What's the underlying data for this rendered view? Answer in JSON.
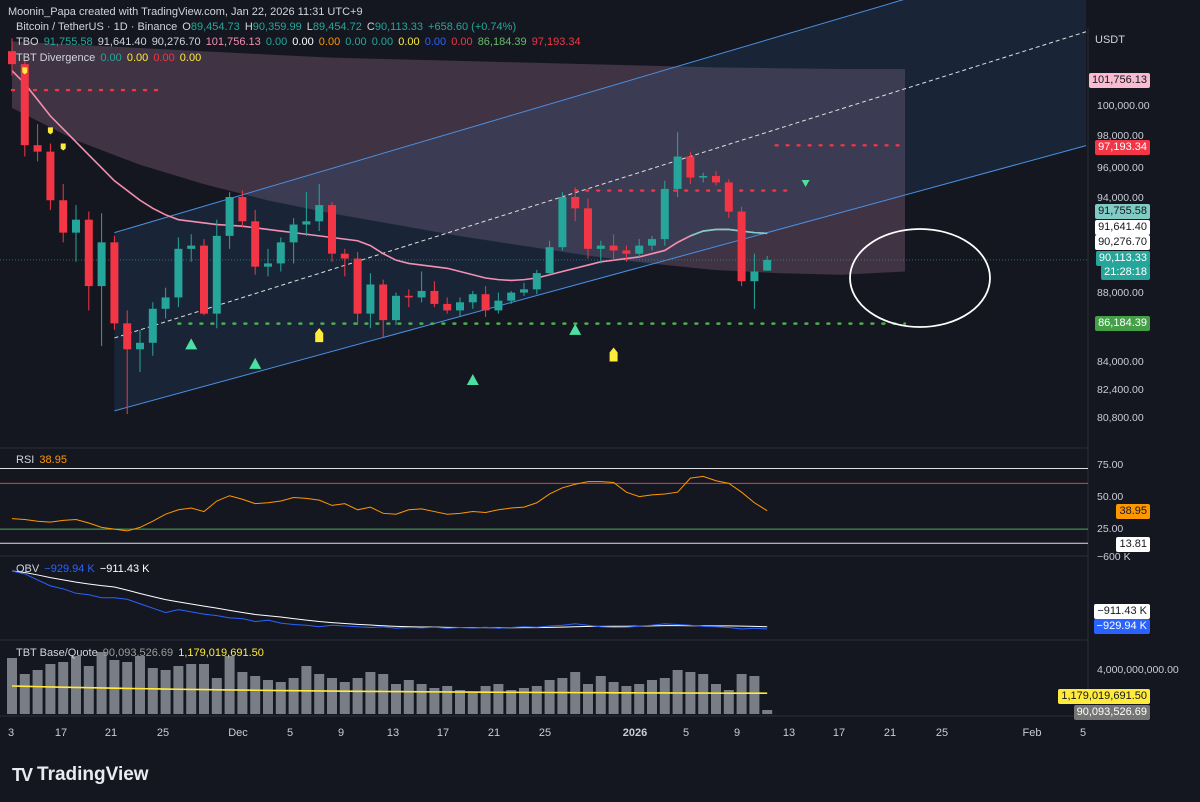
{
  "header": {
    "created": "Moonin_Papa created with TradingView.com, Jan 22, 2026 11:31 UTC+9",
    "currency": "USDT"
  },
  "symbol_line": {
    "name": "Bitcoin / TetherUS · 1D · Binance",
    "o_label": "O",
    "o": "89,454.73",
    "h_label": "H",
    "h": "90,359.99",
    "l_label": "L",
    "l": "89,454.72",
    "c_label": "C",
    "c": "90,113.33",
    "chg": "+658.60 (+0.74%)"
  },
  "tbo_line": {
    "name": "TBO",
    "v1": "91,755.58",
    "v2": "91,641.40",
    "v3": "90,276.70",
    "v4": "101,756.13",
    "z1": "0.00",
    "z2": "0.00",
    "z3": "0.00",
    "z4": "0.00",
    "z5": "0.00",
    "z6": "0.00",
    "z7": "0.00",
    "z8": "0.00",
    "v5": "86,184.39",
    "v6": "97,193.34"
  },
  "div_line": {
    "name": "TBT Divergence",
    "z1": "0.00",
    "z2": "0.00",
    "z3": "0.00",
    "z4": "0.00"
  },
  "rsi_legend": {
    "name": "RSI",
    "value": "38.95"
  },
  "obv_legend": {
    "name": "OBV",
    "v1": "−929.94 K",
    "v2": "−911.43 K"
  },
  "base_legend": {
    "name": "TBT Base/Quote",
    "v1": "90,093,526.69",
    "v2": "1,179,019,691.50"
  },
  "price_labels": {
    "p101": "101,756.13",
    "p97": "97,193.34",
    "p91755": "91,755.58",
    "p91641": "91,641.40",
    "p90276": "90,276.70",
    "p90113": "90,113.33",
    "countdown": "21:28:18",
    "p86184": "86,184.39"
  },
  "price_ticks": [
    "100,000.00",
    "98,000.00",
    "96,000.00",
    "94,000.00",
    "88,000.00",
    "84,000.00",
    "82,400.00",
    "80,800.00"
  ],
  "rsi_ticks": {
    "t75": "75.00",
    "t50": "50.00",
    "t25": "25.00",
    "cur": "38.95",
    "low": "13.81"
  },
  "obv_ticks": {
    "top": "−600 K",
    "a": "−911.43 K",
    "b": "−929.94 K"
  },
  "base_ticks": {
    "top": "4,000,000,000.00",
    "a": "1,179,019,691.50",
    "b": "90,093,526.69"
  },
  "time_ticks": [
    "3",
    "17",
    "21",
    "25",
    "Dec",
    "5",
    "9",
    "13",
    "17",
    "21",
    "25",
    "2026",
    "5",
    "9",
    "13",
    "17",
    "21",
    "25",
    "Feb",
    "5"
  ],
  "footer": {
    "brand": "TradingView",
    "logo": "TV"
  },
  "colors": {
    "up": "#26a69a",
    "down": "#f23645",
    "bg": "#151720",
    "channel": "#4a90e2",
    "ma": "#f48fb1",
    "rsi": "#ff9800",
    "obv": "#2962ff",
    "baseline": "#ffeb3b"
  },
  "chart_data": {
    "type": "candlestick",
    "title": "Bitcoin / TetherUS · 1D · Binance",
    "ylim": [
      79000,
      104000
    ],
    "ohlc": [
      [
        103000,
        103800,
        101500,
        102200
      ],
      [
        102200,
        102400,
        96500,
        97200
      ],
      [
        97200,
        98500,
        96200,
        96800
      ],
      [
        96800,
        97300,
        93200,
        93800
      ],
      [
        93800,
        94800,
        91200,
        91800
      ],
      [
        91800,
        93500,
        90000,
        92600
      ],
      [
        92600,
        93100,
        87000,
        88500
      ],
      [
        88500,
        93000,
        84800,
        91200
      ],
      [
        91200,
        91600,
        85800,
        86200
      ],
      [
        86200,
        87000,
        80600,
        84600
      ],
      [
        84600,
        85800,
        83200,
        85000
      ],
      [
        85000,
        87500,
        84200,
        87100
      ],
      [
        87100,
        88400,
        86500,
        87800
      ],
      [
        87800,
        91500,
        87200,
        90800
      ],
      [
        90800,
        91700,
        90000,
        91000
      ],
      [
        91000,
        91400,
        86700,
        86800
      ],
      [
        86800,
        92600,
        85900,
        91600
      ],
      [
        91600,
        94300,
        90800,
        94000
      ],
      [
        94000,
        94400,
        92100,
        92500
      ],
      [
        92500,
        93200,
        89200,
        89700
      ],
      [
        89700,
        90800,
        89100,
        89900
      ],
      [
        89900,
        91500,
        89400,
        91200
      ],
      [
        91200,
        92700,
        89900,
        92300
      ],
      [
        92300,
        94300,
        91600,
        92500
      ],
      [
        92500,
        94800,
        91900,
        93500
      ],
      [
        93500,
        93700,
        90000,
        90500
      ],
      [
        90500,
        90800,
        89100,
        90200
      ],
      [
        90200,
        90600,
        86100,
        86800
      ],
      [
        86800,
        89300,
        85900,
        88600
      ],
      [
        88600,
        88900,
        85300,
        86400
      ],
      [
        86400,
        88100,
        86100,
        87900
      ],
      [
        87900,
        88300,
        87200,
        87800
      ],
      [
        87800,
        89400,
        87500,
        88200
      ],
      [
        88200,
        88800,
        87200,
        87400
      ],
      [
        87400,
        87800,
        86800,
        87000
      ],
      [
        87000,
        87800,
        86600,
        87500
      ],
      [
        87500,
        88200,
        87100,
        88000
      ],
      [
        88000,
        88500,
        86600,
        87000
      ],
      [
        87000,
        88100,
        86800,
        87600
      ],
      [
        87600,
        88200,
        87400,
        88100
      ],
      [
        88100,
        88700,
        87900,
        88300
      ],
      [
        88300,
        89500,
        88000,
        89300
      ],
      [
        89300,
        91300,
        89200,
        90900
      ],
      [
        90900,
        94300,
        90700,
        94000
      ],
      [
        94000,
        94600,
        92500,
        93300
      ],
      [
        93300,
        93900,
        90200,
        90800
      ],
      [
        90800,
        91300,
        89900,
        91000
      ],
      [
        91000,
        91700,
        90100,
        90700
      ],
      [
        90700,
        91000,
        90000,
        90500
      ],
      [
        90500,
        91400,
        90300,
        91000
      ],
      [
        91000,
        91600,
        90700,
        91400
      ],
      [
        91400,
        95000,
        91000,
        94500
      ],
      [
        94500,
        98000,
        94000,
        96500
      ],
      [
        96500,
        96800,
        94800,
        95200
      ],
      [
        95200,
        95500,
        94900,
        95300
      ],
      [
        95300,
        95600,
        94700,
        94900
      ],
      [
        94900,
        95100,
        92700,
        93100
      ],
      [
        93100,
        93400,
        88500,
        88800
      ],
      [
        88800,
        90500,
        87100,
        89400
      ],
      [
        89454.73,
        90359.99,
        89454.72,
        90113.33
      ]
    ],
    "channel": {
      "lower": [
        [
          80800,
          8
        ],
        [
          91800,
          59
        ]
      ],
      "upper": [
        [
          91800,
          8
        ],
        [
          103700,
          59
        ]
      ],
      "mid": [
        [
          85300,
          8
        ],
        [
          98000,
          59
        ]
      ]
    },
    "ma_line": [
      101800,
      101000,
      100000,
      99000,
      98200,
      97400,
      96600,
      95800,
      95000,
      94400,
      93800,
      93300,
      92900,
      92600,
      92500,
      92400,
      92300,
      92250,
      92200,
      92100,
      92000,
      91900,
      91800,
      91700,
      91600,
      91500,
      91400,
      91300,
      91000,
      90500,
      90100,
      89900,
      89800,
      89700,
      89600,
      89400,
      89200,
      89000,
      88900,
      88850,
      88900,
      89000,
      89200,
      89400,
      89600,
      89800,
      90000,
      90100,
      90200,
      90300,
      90500,
      90700,
      91200,
      91600,
      91900,
      92000,
      92000,
      91900,
      91800,
      91755
    ],
    "levels": {
      "resistance_top": 101756.13,
      "resistance": 97193.34,
      "support": 86184.39,
      "resistance_mid": 94400
    },
    "rsi": {
      "ylim": [
        0,
        100
      ],
      "values": [
        30,
        29,
        27,
        26,
        28,
        29,
        25,
        20,
        18,
        16,
        20,
        27,
        35,
        40,
        42,
        38,
        50,
        56,
        52,
        47,
        48,
        50,
        54,
        53,
        51,
        45,
        47,
        40,
        43,
        36,
        35,
        40,
        41,
        38,
        35,
        36,
        38,
        37,
        40,
        42,
        43,
        48,
        58,
        65,
        69,
        72,
        72,
        71,
        60,
        55,
        57,
        58,
        60,
        76,
        78,
        73,
        70,
        60,
        48,
        38.95
      ],
      "overbought": 75,
      "oversold": 25
    },
    "obv": {
      "values": [
        -540,
        -560,
        -600,
        -640,
        -660,
        -690,
        -700,
        -720,
        -720,
        -730,
        -760,
        -790,
        -820,
        -800,
        -815,
        -830,
        -840,
        -855,
        -860,
        -880,
        -870,
        -890,
        -900,
        -905,
        -915,
        -905,
        -910,
        -915,
        -920,
        -915,
        -925,
        -920,
        -922,
        -918,
        -925,
        -920,
        -923,
        -918,
        -925,
        -920,
        -915,
        -918,
        -910,
        -905,
        -895,
        -905,
        -915,
        -920,
        -918,
        -910,
        -905,
        -895,
        -900,
        -905,
        -912,
        -915,
        -920,
        -930,
        -925,
        -929.94
      ],
      "ma": -911.43
    },
    "volume": {
      "values": [
        2.8,
        2.0,
        2.2,
        2.5,
        2.6,
        2.9,
        2.4,
        3.1,
        2.7,
        2.6,
        2.9,
        2.3,
        2.2,
        2.4,
        2.5,
        2.5,
        1.8,
        2.9,
        2.1,
        1.9,
        1.7,
        1.6,
        1.8,
        2.4,
        2.0,
        1.8,
        1.6,
        1.8,
        2.1,
        2.0,
        1.5,
        1.7,
        1.5,
        1.3,
        1.4,
        1.2,
        1.1,
        1.4,
        1.5,
        1.2,
        1.3,
        1.4,
        1.7,
        1.8,
        2.1,
        1.5,
        1.9,
        1.6,
        1.4,
        1.5,
        1.7,
        1.8,
        2.2,
        2.1,
        2.0,
        1.5,
        1.2,
        2.0,
        1.9,
        0.2
      ],
      "baseline": 1.18
    }
  }
}
